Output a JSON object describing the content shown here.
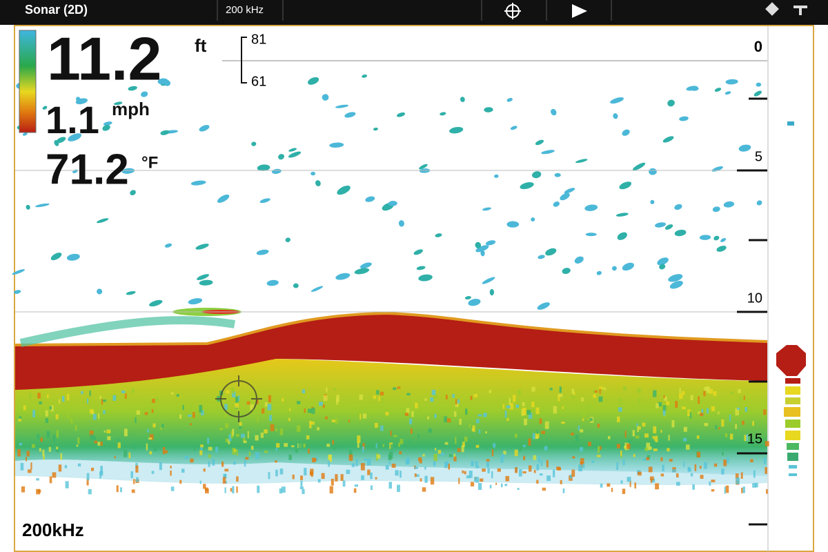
{
  "header": {
    "title": "Sonar (2D)",
    "frequency": "200 kHz"
  },
  "readouts": {
    "depth": "11.2",
    "depth_unit": "ft",
    "speed": "1.1",
    "speed_unit": "mph",
    "temperature": "71.2",
    "temperature_unit": "°F"
  },
  "zoom_bracket": {
    "top": "81",
    "bottom": "61"
  },
  "depth_scale": [
    "0",
    "5",
    "10",
    "15"
  ],
  "footer": {
    "frequency": "200kHz"
  }
}
